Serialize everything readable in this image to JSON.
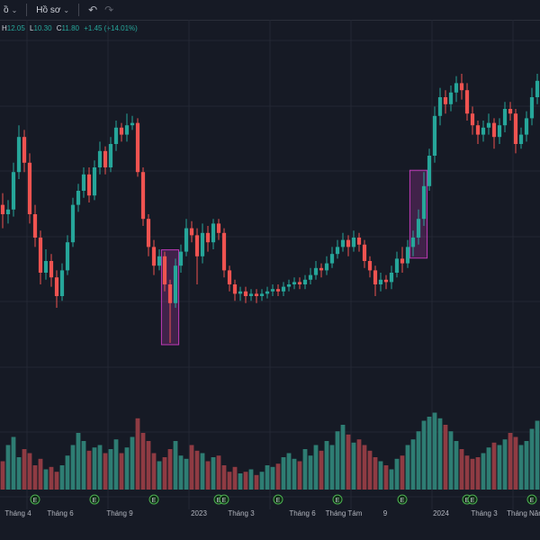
{
  "toolbar": {
    "indicator_label": "ồ",
    "profile_label": "Hồ sơ",
    "chevron_icon": "chevron-down-icon",
    "undo_icon": "undo-icon",
    "redo_icon": "redo-icon"
  },
  "ohlc": {
    "h_key": "H",
    "h_val": "12.05",
    "l_key": "L",
    "l_val": "10.30",
    "c_key": "C",
    "c_val": "11.80",
    "change": "+1.45 (+14.01%)"
  },
  "colors": {
    "up": "#26a69a",
    "down": "#ef5350",
    "volume_up": "#2e7d73",
    "volume_down": "#8f3b43",
    "highlight": "#c03ab8",
    "grid": "#232734",
    "background": "#161a25"
  },
  "x_axis_labels": [
    "Tháng 4",
    "Tháng 6",
    "Tháng 9",
    "2023",
    "Tháng 3",
    "Tháng 6",
    "Tháng Tám",
    "9",
    "2024",
    "Tháng 3",
    "Tháng Năm"
  ],
  "earnings_marker_label": "E",
  "chart_data": {
    "type": "candlestick",
    "price_scale": "relative (no price axis visible)",
    "grid": true,
    "highlighted_ranges": [
      {
        "from_index": 30,
        "to_index": 32
      },
      {
        "from_index": 76,
        "to_index": 78
      }
    ],
    "earnings_marker_indices": [
      6,
      17,
      28,
      40,
      41,
      51,
      62,
      74,
      86,
      87,
      98
    ],
    "candles": [
      [
        0.44,
        0.4,
        0.34,
        0.49
      ],
      [
        0.4,
        0.42,
        0.36,
        0.46
      ],
      [
        0.42,
        0.58,
        0.39,
        0.62
      ],
      [
        0.58,
        0.73,
        0.55,
        0.78
      ],
      [
        0.73,
        0.62,
        0.58,
        0.76
      ],
      [
        0.62,
        0.4,
        0.36,
        0.66
      ],
      [
        0.4,
        0.3,
        0.26,
        0.44
      ],
      [
        0.3,
        0.15,
        0.1,
        0.33
      ],
      [
        0.15,
        0.2,
        0.12,
        0.25
      ],
      [
        0.2,
        0.13,
        0.09,
        0.23
      ],
      [
        0.13,
        0.05,
        0.0,
        0.16
      ],
      [
        0.05,
        0.16,
        0.03,
        0.19
      ],
      [
        0.16,
        0.28,
        0.14,
        0.31
      ],
      [
        0.28,
        0.44,
        0.26,
        0.47
      ],
      [
        0.44,
        0.5,
        0.41,
        0.53
      ],
      [
        0.5,
        0.57,
        0.47,
        0.6
      ],
      [
        0.57,
        0.48,
        0.45,
        0.6
      ],
      [
        0.48,
        0.6,
        0.46,
        0.63
      ],
      [
        0.6,
        0.67,
        0.57,
        0.71
      ],
      [
        0.67,
        0.6,
        0.57,
        0.69
      ],
      [
        0.6,
        0.7,
        0.58,
        0.73
      ],
      [
        0.7,
        0.77,
        0.67,
        0.8
      ],
      [
        0.77,
        0.74,
        0.71,
        0.79
      ],
      [
        0.74,
        0.78,
        0.71,
        0.83
      ],
      [
        0.78,
        0.79,
        0.76,
        0.82
      ],
      [
        0.79,
        0.58,
        0.56,
        0.81
      ],
      [
        0.58,
        0.38,
        0.35,
        0.6
      ],
      [
        0.38,
        0.26,
        0.22,
        0.4
      ],
      [
        0.26,
        0.18,
        0.14,
        0.29
      ],
      [
        0.18,
        0.22,
        0.16,
        0.25
      ],
      [
        0.22,
        0.1,
        0.07,
        0.24
      ],
      [
        0.1,
        0.02,
        -0.15,
        0.12
      ],
      [
        0.02,
        0.18,
        0.0,
        0.21
      ],
      [
        0.18,
        0.24,
        0.15,
        0.27
      ],
      [
        0.24,
        0.34,
        0.22,
        0.38
      ],
      [
        0.34,
        0.31,
        0.28,
        0.37
      ],
      [
        0.31,
        0.22,
        0.1,
        0.34
      ],
      [
        0.22,
        0.32,
        0.19,
        0.36
      ],
      [
        0.32,
        0.28,
        0.24,
        0.35
      ],
      [
        0.28,
        0.36,
        0.25,
        0.38
      ],
      [
        0.36,
        0.32,
        0.29,
        0.38
      ],
      [
        0.32,
        0.16,
        0.13,
        0.34
      ],
      [
        0.16,
        0.1,
        0.07,
        0.18
      ],
      [
        0.1,
        0.06,
        0.03,
        0.12
      ],
      [
        0.06,
        0.07,
        0.03,
        0.09
      ],
      [
        0.07,
        0.05,
        0.02,
        0.09
      ],
      [
        0.05,
        0.06,
        0.03,
        0.08
      ],
      [
        0.06,
        0.05,
        0.02,
        0.08
      ],
      [
        0.05,
        0.06,
        0.03,
        0.08
      ],
      [
        0.06,
        0.07,
        0.04,
        0.09
      ],
      [
        0.07,
        0.08,
        0.05,
        0.1
      ],
      [
        0.08,
        0.07,
        0.05,
        0.1
      ],
      [
        0.07,
        0.09,
        0.05,
        0.11
      ],
      [
        0.09,
        0.1,
        0.07,
        0.12
      ],
      [
        0.1,
        0.11,
        0.08,
        0.13
      ],
      [
        0.11,
        0.1,
        0.08,
        0.13
      ],
      [
        0.1,
        0.12,
        0.08,
        0.14
      ],
      [
        0.12,
        0.14,
        0.1,
        0.17
      ],
      [
        0.14,
        0.17,
        0.12,
        0.2
      ],
      [
        0.17,
        0.16,
        0.13,
        0.19
      ],
      [
        0.16,
        0.19,
        0.14,
        0.22
      ],
      [
        0.19,
        0.23,
        0.17,
        0.26
      ],
      [
        0.23,
        0.26,
        0.21,
        0.29
      ],
      [
        0.26,
        0.29,
        0.24,
        0.32
      ],
      [
        0.29,
        0.26,
        0.22,
        0.31
      ],
      [
        0.26,
        0.3,
        0.24,
        0.33
      ],
      [
        0.3,
        0.27,
        0.24,
        0.32
      ],
      [
        0.27,
        0.2,
        0.17,
        0.29
      ],
      [
        0.2,
        0.16,
        0.13,
        0.22
      ],
      [
        0.16,
        0.1,
        0.05,
        0.18
      ],
      [
        0.1,
        0.12,
        0.07,
        0.15
      ],
      [
        0.12,
        0.11,
        0.08,
        0.14
      ],
      [
        0.11,
        0.15,
        0.08,
        0.18
      ],
      [
        0.15,
        0.21,
        0.13,
        0.24
      ],
      [
        0.21,
        0.19,
        0.15,
        0.26
      ],
      [
        0.19,
        0.26,
        0.17,
        0.29
      ],
      [
        0.26,
        0.3,
        0.22,
        0.33
      ],
      [
        0.3,
        0.38,
        0.27,
        0.42
      ],
      [
        0.38,
        0.52,
        0.35,
        0.58
      ],
      [
        0.52,
        0.65,
        0.5,
        0.68
      ],
      [
        0.65,
        0.82,
        0.62,
        0.86
      ],
      [
        0.82,
        0.9,
        0.78,
        0.94
      ],
      [
        0.9,
        0.87,
        0.83,
        0.93
      ],
      [
        0.87,
        0.92,
        0.84,
        0.95
      ],
      [
        0.92,
        0.96,
        0.88,
        0.99
      ],
      [
        0.96,
        0.93,
        0.89,
        1.0
      ],
      [
        0.93,
        0.83,
        0.8,
        0.96
      ],
      [
        0.83,
        0.78,
        0.74,
        0.86
      ],
      [
        0.78,
        0.74,
        0.7,
        0.8
      ],
      [
        0.74,
        0.77,
        0.71,
        0.8
      ],
      [
        0.77,
        0.79,
        0.74,
        0.83
      ],
      [
        0.79,
        0.73,
        0.68,
        0.81
      ],
      [
        0.73,
        0.78,
        0.7,
        0.81
      ],
      [
        0.78,
        0.85,
        0.75,
        0.88
      ],
      [
        0.85,
        0.83,
        0.8,
        0.88
      ],
      [
        0.83,
        0.7,
        0.66,
        0.85
      ],
      [
        0.7,
        0.74,
        0.68,
        0.77
      ],
      [
        0.74,
        0.81,
        0.71,
        0.84
      ],
      [
        0.81,
        0.9,
        0.78,
        0.94
      ],
      [
        0.9,
        0.97,
        0.87,
        1.0
      ]
    ],
    "volumes": [
      0.35,
      0.55,
      0.65,
      0.4,
      0.5,
      0.45,
      0.3,
      0.38,
      0.25,
      0.28,
      0.22,
      0.3,
      0.42,
      0.55,
      0.7,
      0.6,
      0.48,
      0.52,
      0.55,
      0.45,
      0.5,
      0.62,
      0.45,
      0.52,
      0.65,
      0.88,
      0.7,
      0.6,
      0.45,
      0.35,
      0.4,
      0.5,
      0.6,
      0.42,
      0.38,
      0.55,
      0.48,
      0.45,
      0.35,
      0.4,
      0.42,
      0.3,
      0.22,
      0.28,
      0.2,
      0.22,
      0.25,
      0.18,
      0.22,
      0.3,
      0.28,
      0.32,
      0.4,
      0.45,
      0.38,
      0.35,
      0.5,
      0.42,
      0.55,
      0.48,
      0.6,
      0.55,
      0.72,
      0.8,
      0.68,
      0.58,
      0.62,
      0.55,
      0.48,
      0.4,
      0.35,
      0.3,
      0.25,
      0.38,
      0.42,
      0.55,
      0.62,
      0.72,
      0.85,
      0.9,
      0.95,
      0.88,
      0.8,
      0.72,
      0.6,
      0.5,
      0.42,
      0.38,
      0.4,
      0.45,
      0.52,
      0.58,
      0.55,
      0.62,
      0.7,
      0.65,
      0.55,
      0.6,
      0.75,
      0.85
    ]
  }
}
